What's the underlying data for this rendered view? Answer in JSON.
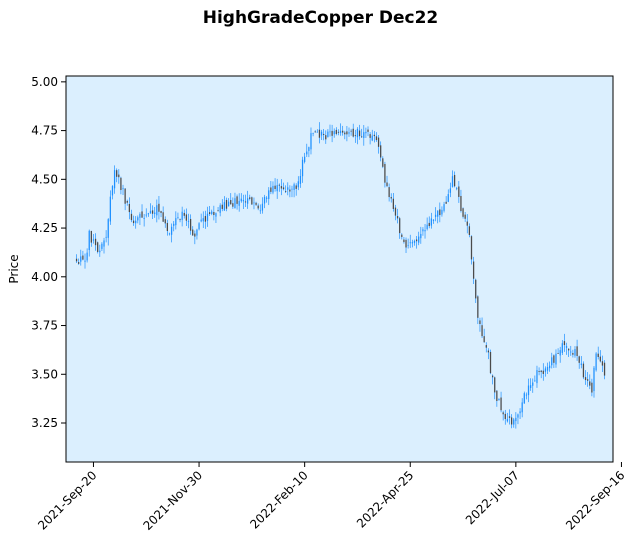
{
  "chart_data": {
    "type": "candlestick",
    "title": "HighGradeCopper Dec22",
    "xlabel": "",
    "ylabel": "Price",
    "ylim": [
      3.05,
      5.03
    ],
    "yticks": [
      3.25,
      3.5,
      3.75,
      4.0,
      4.25,
      4.5,
      4.75,
      5.0
    ],
    "ytick_labels": [
      "3.25",
      "3.50",
      "3.75",
      "4.00",
      "4.25",
      "4.50",
      "4.75",
      "5.00"
    ],
    "xlim": [
      -5,
      254
    ],
    "xticks": [
      8,
      58,
      108,
      158,
      208,
      258
    ],
    "xtick_labels": [
      "2021-Sep-20",
      "2021-Nov-30",
      "2022-Feb-10",
      "2022-Apr-25",
      "2022-Jul-07",
      "2022-Sep-16"
    ],
    "grid": false,
    "colors": {
      "plot_background": "#dbeffe",
      "up": "#1e90ff",
      "down": "#4a4a4a",
      "wick": "#1e90ff",
      "frame": "#000000"
    },
    "anchors": [
      [
        0,
        4.1
      ],
      [
        4,
        4.06
      ],
      [
        6,
        4.22
      ],
      [
        10,
        4.13
      ],
      [
        14,
        4.22
      ],
      [
        18,
        4.56
      ],
      [
        22,
        4.43
      ],
      [
        26,
        4.3
      ],
      [
        32,
        4.3
      ],
      [
        38,
        4.35
      ],
      [
        44,
        4.24
      ],
      [
        50,
        4.32
      ],
      [
        56,
        4.22
      ],
      [
        62,
        4.32
      ],
      [
        70,
        4.36
      ],
      [
        78,
        4.4
      ],
      [
        86,
        4.35
      ],
      [
        94,
        4.46
      ],
      [
        100,
        4.46
      ],
      [
        104,
        4.46
      ],
      [
        108,
        4.62
      ],
      [
        112,
        4.75
      ],
      [
        118,
        4.72
      ],
      [
        126,
        4.75
      ],
      [
        134,
        4.74
      ],
      [
        142,
        4.7
      ],
      [
        146,
        4.5
      ],
      [
        152,
        4.28
      ],
      [
        156,
        4.15
      ],
      [
        162,
        4.2
      ],
      [
        168,
        4.3
      ],
      [
        174,
        4.35
      ],
      [
        178,
        4.52
      ],
      [
        182,
        4.35
      ],
      [
        186,
        4.2
      ],
      [
        190,
        3.78
      ],
      [
        194,
        3.65
      ],
      [
        198,
        3.4
      ],
      [
        202,
        3.3
      ],
      [
        206,
        3.24
      ],
      [
        212,
        3.38
      ],
      [
        218,
        3.5
      ],
      [
        224,
        3.55
      ],
      [
        230,
        3.65
      ],
      [
        236,
        3.62
      ],
      [
        240,
        3.5
      ],
      [
        244,
        3.42
      ],
      [
        246,
        3.6
      ],
      [
        250,
        3.5
      ]
    ]
  }
}
